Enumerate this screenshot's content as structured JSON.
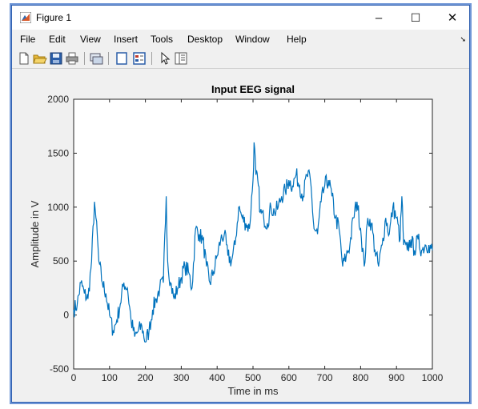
{
  "window": {
    "title": "Figure 1",
    "controls": {
      "minimize": "–",
      "maximize": "☐",
      "close": "✕"
    }
  },
  "menu": {
    "items": [
      "File",
      "Edit",
      "View",
      "Insert",
      "Tools",
      "Desktop",
      "Window",
      "Help"
    ],
    "overflow_arrow": "➘"
  },
  "toolbar": {
    "icons": [
      "new-figure-icon",
      "open-file-icon",
      "save-icon",
      "print-icon",
      "link-plot-icon",
      "hide-plot-tools-icon",
      "show-plot-tools-icon",
      "edit-plot-arrow-icon",
      "property-inspector-icon"
    ]
  },
  "colors": {
    "line": "#0072bd",
    "axes_bg": "#ffffff",
    "figure_bg": "#f0f0f0",
    "window_border": "#2f5fb0"
  },
  "chart_data": {
    "type": "line",
    "title": "Input EEG signal",
    "xlabel": "Time in ms",
    "ylabel": "Amplitude in V",
    "xlim": [
      0,
      1000
    ],
    "ylim": [
      -500,
      2000
    ],
    "xticks": [
      0,
      100,
      200,
      300,
      400,
      500,
      600,
      700,
      800,
      900,
      1000
    ],
    "yticks": [
      -500,
      0,
      500,
      1000,
      1500,
      2000
    ],
    "grid": false,
    "series": [
      {
        "x": [
          0,
          10,
          20,
          30,
          40,
          50,
          58,
          62,
          70,
          80,
          90,
          100,
          110,
          120,
          130,
          140,
          150,
          160,
          170,
          180,
          190,
          200,
          210,
          220,
          230,
          240,
          250,
          258,
          262,
          270,
          280,
          290,
          300,
          310,
          320,
          330,
          340,
          350,
          360,
          370,
          380,
          390,
          400,
          410,
          420,
          430,
          440,
          450,
          460,
          470,
          480,
          490,
          500,
          503,
          508,
          515,
          520,
          530,
          540,
          550,
          560,
          570,
          580,
          590,
          600,
          610,
          620,
          630,
          640,
          650,
          660,
          670,
          680,
          690,
          700,
          710,
          720,
          730,
          740,
          750,
          760,
          770,
          780,
          790,
          800,
          810,
          820,
          830,
          840,
          850,
          860,
          870,
          880,
          890,
          900,
          910,
          915,
          920,
          930,
          940,
          950,
          960,
          970,
          980,
          990,
          1000
        ],
        "y": [
          50,
          100,
          300,
          200,
          150,
          500,
          1050,
          900,
          500,
          300,
          200,
          0,
          -150,
          -50,
          100,
          300,
          250,
          -50,
          -200,
          -150,
          -100,
          -250,
          -150,
          50,
          150,
          250,
          300,
          1100,
          500,
          300,
          150,
          250,
          350,
          450,
          400,
          250,
          800,
          750,
          700,
          450,
          300,
          400,
          550,
          700,
          750,
          550,
          500,
          650,
          1000,
          900,
          850,
          800,
          1250,
          1600,
          1300,
          1200,
          950,
          900,
          850,
          1000,
          950,
          1000,
          1100,
          1150,
          1250,
          1200,
          1300,
          1200,
          1100,
          1300,
          1250,
          800,
          750,
          1050,
          1200,
          1250,
          1100,
          900,
          800,
          450,
          550,
          650,
          900,
          1050,
          800,
          450,
          900,
          850,
          600,
          450,
          650,
          900,
          750,
          1000,
          900,
          700,
          1100,
          650,
          600,
          700,
          600,
          700,
          600,
          650,
          650,
          600
        ]
      }
    ]
  }
}
